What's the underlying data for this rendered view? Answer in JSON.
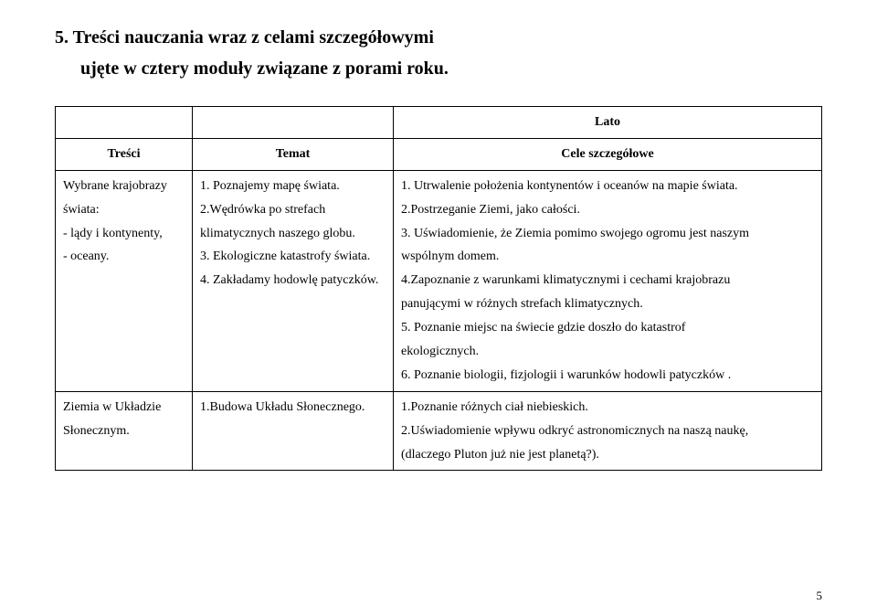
{
  "heading_line1": "5. Treści nauczania wraz z celami szczegółowymi",
  "heading_line2": "ujęte w cztery moduły związane z porami roku.",
  "season_label": "Lato",
  "col_headers": {
    "c1": "Treści",
    "c2": "Temat",
    "c3": "Cele szczegółowe"
  },
  "row1": {
    "tresci_1": "Wybrane krajobrazy",
    "tresci_2": "świata:",
    "tresci_3": "- lądy i kontynenty,",
    "tresci_4": "- oceany.",
    "temat_1": "1. Poznajemy mapę świata.",
    "temat_2": "2.Wędrówka po strefach",
    "temat_3": "klimatycznych naszego globu.",
    "temat_4": "3. Ekologiczne katastrofy świata.",
    "temat_5": "4. Zakładamy hodowlę patyczków.",
    "cele_1": "1. Utrwalenie położenia kontynentów i oceanów na mapie świata.",
    "cele_2": "2.Postrzeganie Ziemi, jako całości.",
    "cele_3": "3. Uświadomienie, że Ziemia pomimo swojego ogromu jest naszym",
    "cele_4": "wspólnym domem.",
    "cele_5": "4.Zapoznanie z warunkami klimatycznymi i cechami krajobrazu",
    "cele_6": "panującymi w różnych strefach klimatycznych.",
    "cele_7": "5. Poznanie miejsc na świecie gdzie doszło do katastrof",
    "cele_8": "ekologicznych.",
    "cele_9": "6. Poznanie biologii, fizjologii i warunków hodowli  patyczków ."
  },
  "row2": {
    "tresci_1": "Ziemia w Układzie",
    "tresci_2": "Słonecznym.",
    "temat_1": "1.Budowa Układu Słonecznego.",
    "cele_1": "1.Poznanie różnych ciał niebieskich.",
    "cele_2": "2.Uświadomienie wpływu odkryć astronomicznych na naszą naukę,",
    "cele_3": "(dlaczego Pluton już nie jest planetą?)."
  },
  "page_number": "5"
}
